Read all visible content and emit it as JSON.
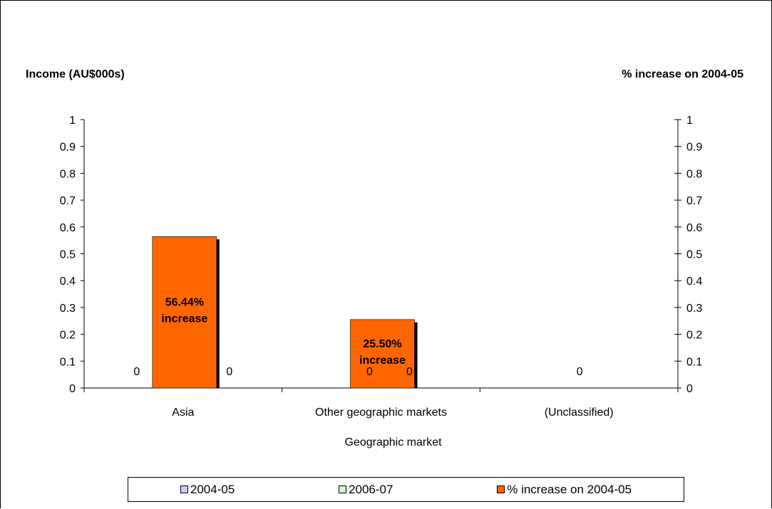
{
  "chart_data": {
    "type": "bar",
    "left_axis_title": "Income (AU$000s)",
    "right_axis_title": "% increase on 2004-05",
    "xlabel": "Geographic market",
    "categories": [
      "Asia",
      "Other geographic markets",
      "(Unclassified)"
    ],
    "series": [
      {
        "name": "2004-05",
        "values": [
          0,
          0,
          0
        ],
        "color": "#ccccff",
        "axis": "left"
      },
      {
        "name": "2006-07",
        "values": [
          0,
          0,
          0
        ],
        "color": "#ccffcc",
        "axis": "left"
      },
      {
        "name": "% increase on 2004-05",
        "values": [
          0.5644,
          0.255,
          null
        ],
        "color": "#ff6600",
        "axis": "right"
      }
    ],
    "left_ticks": [
      "0",
      "0.1",
      "0.2",
      "0.3",
      "0.4",
      "0.5",
      "0.6",
      "0.7",
      "0.8",
      "0.9",
      "1"
    ],
    "right_ticks": [
      "0",
      "0.1",
      "0.2",
      "0.3",
      "0.4",
      "0.5",
      "0.6",
      "0.7",
      "0.8",
      "0.9",
      "1"
    ],
    "ylim": [
      0,
      1
    ],
    "bar_labels": [
      {
        "line1": "56.44%",
        "line2": "increase"
      },
      {
        "line1": "25.50%",
        "line2": "increase"
      }
    ],
    "zero_labels": [
      {
        "text": "0",
        "category": 0,
        "series": 0
      },
      {
        "text": "0",
        "category": 0,
        "series": 1
      },
      {
        "text": "0",
        "category": 1,
        "series": 0
      },
      {
        "text": "0",
        "category": 1,
        "series": 1
      },
      {
        "text": "0",
        "category": 2,
        "series": 1
      }
    ],
    "legend_position": "bottom",
    "grid": false
  }
}
